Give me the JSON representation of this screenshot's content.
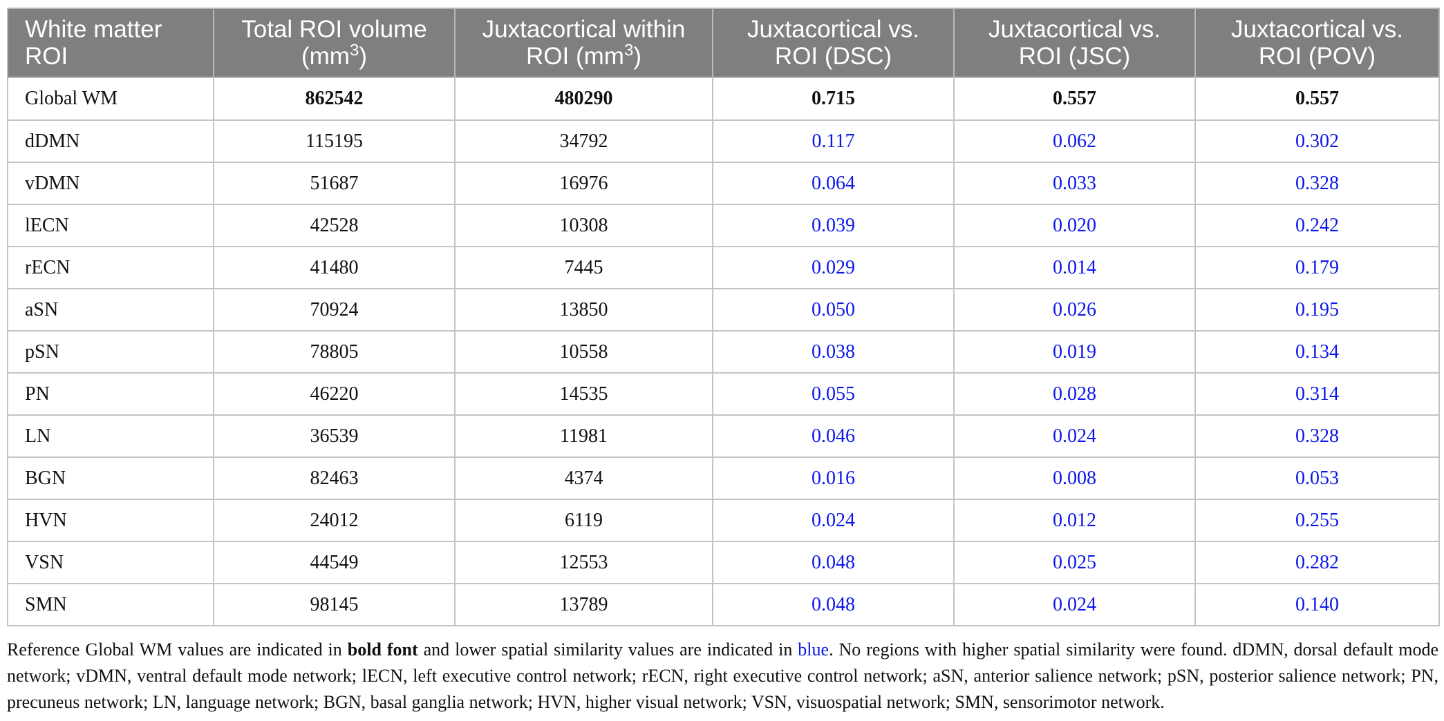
{
  "header": {
    "col1": "White matter ROI",
    "col2_main": "Total ROI volume (mm",
    "col2_sup": "3",
    "col2_end": ")",
    "col3_main": "Juxtacortical within ROI (mm",
    "col3_sup": "3",
    "col3_end": ")",
    "col4": "Juxtacortical vs. ROI (DSC)",
    "col5": "Juxtacortical vs. ROI (JSC)",
    "col6": "Juxtacortical vs. ROI (POV)"
  },
  "rows": [
    {
      "roi": "Global WM",
      "total": "862542",
      "juxta": "480290",
      "dsc": "0.715",
      "jsc": "0.557",
      "pov": "0.557"
    },
    {
      "roi": "dDMN",
      "total": "115195",
      "juxta": "34792",
      "dsc": "0.117",
      "jsc": "0.062",
      "pov": "0.302"
    },
    {
      "roi": "vDMN",
      "total": "51687",
      "juxta": "16976",
      "dsc": "0.064",
      "jsc": "0.033",
      "pov": "0.328"
    },
    {
      "roi": "lECN",
      "total": "42528",
      "juxta": "10308",
      "dsc": "0.039",
      "jsc": "0.020",
      "pov": "0.242"
    },
    {
      "roi": "rECN",
      "total": "41480",
      "juxta": "7445",
      "dsc": "0.029",
      "jsc": "0.014",
      "pov": "0.179"
    },
    {
      "roi": "aSN",
      "total": "70924",
      "juxta": "13850",
      "dsc": "0.050",
      "jsc": "0.026",
      "pov": "0.195"
    },
    {
      "roi": "pSN",
      "total": "78805",
      "juxta": "10558",
      "dsc": "0.038",
      "jsc": "0.019",
      "pov": "0.134"
    },
    {
      "roi": "PN",
      "total": "46220",
      "juxta": "14535",
      "dsc": "0.055",
      "jsc": "0.028",
      "pov": "0.314"
    },
    {
      "roi": "LN",
      "total": "36539",
      "juxta": "11981",
      "dsc": "0.046",
      "jsc": "0.024",
      "pov": "0.328"
    },
    {
      "roi": "BGN",
      "total": "82463",
      "juxta": "4374",
      "dsc": "0.016",
      "jsc": "0.008",
      "pov": "0.053"
    },
    {
      "roi": "HVN",
      "total": "24012",
      "juxta": "6119",
      "dsc": "0.024",
      "jsc": "0.012",
      "pov": "0.255"
    },
    {
      "roi": "VSN",
      "total": "44549",
      "juxta": "12553",
      "dsc": "0.048",
      "jsc": "0.025",
      "pov": "0.282"
    },
    {
      "roi": "SMN",
      "total": "98145",
      "juxta": "13789",
      "dsc": "0.048",
      "jsc": "0.024",
      "pov": "0.140"
    }
  ],
  "footnote": {
    "part1": "Reference Global WM values are indicated in ",
    "bold": "bold font",
    "part2": " and lower spatial similarity values are indicated in ",
    "blue": "blue",
    "part3": ". No regions with higher spatial similarity were found. dDMN, dorsal default mode network; vDMN, ventral default mode network; lECN, left executive control network; rECN, right executive control network; aSN, anterior salience network; pSN, posterior salience network; PN, precuneus network; LN, language network; BGN, basal ganglia network; HVN, higher visual network; VSN, visuospatial network; SMN, sensorimotor network."
  },
  "colors": {
    "header_bg": "#7f7f7f",
    "header_text": "#ffffff",
    "highlight_blue": "#0a17e8",
    "grid": "#c4c4c4"
  }
}
